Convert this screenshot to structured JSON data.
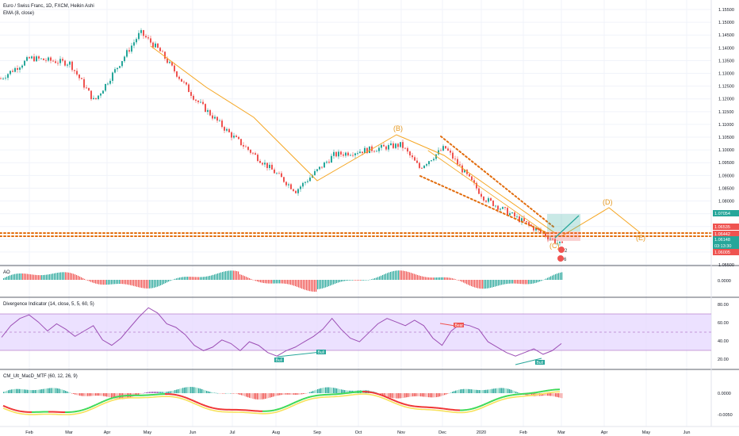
{
  "header": {
    "symbol_title": "Euro / Swiss Franc, 1D, FXCM, Heikin Ashi",
    "ema_title": "EMA (8, close)"
  },
  "panes": {
    "ao": {
      "title": "AO",
      "tick": "0.0000"
    },
    "div": {
      "title": "Divergence Indicator (14, close, 5, 5, 60, 5)",
      "ticks": [
        "80.00",
        "60.00",
        "40.00",
        "20.00"
      ]
    },
    "macd": {
      "title": "CM_Ult_MacD_MTF (60, 12, 26, 9)",
      "ticks": [
        "0.0000",
        "-0.0050"
      ]
    }
  },
  "x_axis": {
    "months": [
      "Feb",
      "Mar",
      "Apr",
      "May",
      "Jun",
      "Jul",
      "Aug",
      "Sep",
      "Oct",
      "Nov",
      "Dec",
      "2020",
      "Feb",
      "Mar",
      "Apr",
      "May",
      "Jun"
    ]
  },
  "price_labels": [
    {
      "text": "1.07054",
      "color": "#26a69a"
    },
    {
      "text": "1.06535",
      "color": "#ef5350"
    },
    {
      "text": "1.06442",
      "color": "#ef5350"
    },
    {
      "text": "1.06148",
      "color": "#26a69a"
    },
    {
      "text": "03:13:30",
      "color": "#26a69a"
    },
    {
      "text": "1.06005",
      "color": "#ef5350"
    }
  ],
  "annotations": {
    "waves": [
      "(B)",
      "(C)",
      "(D)",
      "(E)"
    ],
    "div_signals": [
      "Bull",
      "Bull",
      "Bear",
      "Bull"
    ],
    "markers": [
      "2",
      "6"
    ]
  },
  "colors": {
    "up": "#26a69a",
    "down": "#ef5350",
    "wave": "#f2a23a",
    "band": "#e6d7ff",
    "purple": "#9c4fb5"
  },
  "chart_data": [
    {
      "type": "candlestick",
      "title": "Euro / Swiss Franc, 1D, FXCM, Heikin Ashi",
      "y_ticks": [
        "1.15500",
        "1.15000",
        "1.14500",
        "1.14000",
        "1.13500",
        "1.13000",
        "1.12500",
        "1.12000",
        "1.11500",
        "1.11000",
        "1.10500",
        "1.10000",
        "1.09500",
        "1.09000",
        "1.08500",
        "1.08000",
        "1.07500",
        "1.07000",
        "1.06500",
        "1.06000",
        "1.05500"
      ],
      "ylim": [
        1.055,
        1.1575
      ],
      "x_range": [
        "Jan 2019",
        "Jun 2020"
      ],
      "key_closes": [
        {
          "date": "Jan 2019",
          "value": 1.128
        },
        {
          "date": "Feb 2019",
          "value": 1.136
        },
        {
          "date": "Mar 2019",
          "value": 1.134
        },
        {
          "date": "Apr 2019",
          "value": 1.119
        },
        {
          "date": "Apr 2019",
          "value": 1.146
        },
        {
          "date": "May 2019",
          "value": 1.139
        },
        {
          "date": "Jun 2019",
          "value": 1.12
        },
        {
          "date": "Jul 2019",
          "value": 1.106
        },
        {
          "date": "Aug 2019",
          "value": 1.09
        },
        {
          "date": "Sep 2019",
          "value": 1.084
        },
        {
          "date": "Oct 2019",
          "value": 1.098
        },
        {
          "date": "Nov 2019",
          "value": 1.102
        },
        {
          "date": "Nov 2019",
          "value": 1.093
        },
        {
          "date": "Dec 2019",
          "value": 1.101
        },
        {
          "date": "Jan 2020",
          "value": 1.081
        },
        {
          "date": "Feb 2020",
          "value": 1.066
        },
        {
          "date": "Mar 2020",
          "value": 1.062
        }
      ],
      "last_price": 1.06442,
      "horizontal_levels": [
        1.0654,
        1.0645
      ]
    },
    {
      "type": "bar",
      "title": "AO",
      "y_ticks": [
        "0.0000"
      ]
    },
    {
      "type": "line",
      "title": "Divergence Indicator (14, close, 5, 5, 60, 5)",
      "y_ticks": [
        "80.00",
        "60.00",
        "40.00",
        "20.00"
      ],
      "ylim": [
        10,
        87
      ],
      "band": [
        30,
        70
      ],
      "values": [
        45,
        58,
        66,
        70,
        62,
        52,
        60,
        54,
        46,
        52,
        58,
        42,
        36,
        44,
        56,
        68,
        78,
        72,
        60,
        56,
        48,
        36,
        30,
        34,
        42,
        38,
        30,
        40,
        36,
        28,
        24,
        30,
        34,
        40,
        46,
        54,
        66,
        54,
        44,
        40,
        50,
        60,
        66,
        62,
        58,
        64,
        58,
        44,
        36,
        52,
        60,
        58,
        54,
        40,
        34,
        28,
        24,
        28,
        32,
        26,
        30,
        38
      ]
    },
    {
      "type": "bar",
      "title": "CM_Ult_MacD_MTF (60, 12, 26, 9)",
      "y_ticks": [
        "0.0000",
        "-0.0050"
      ]
    }
  ]
}
